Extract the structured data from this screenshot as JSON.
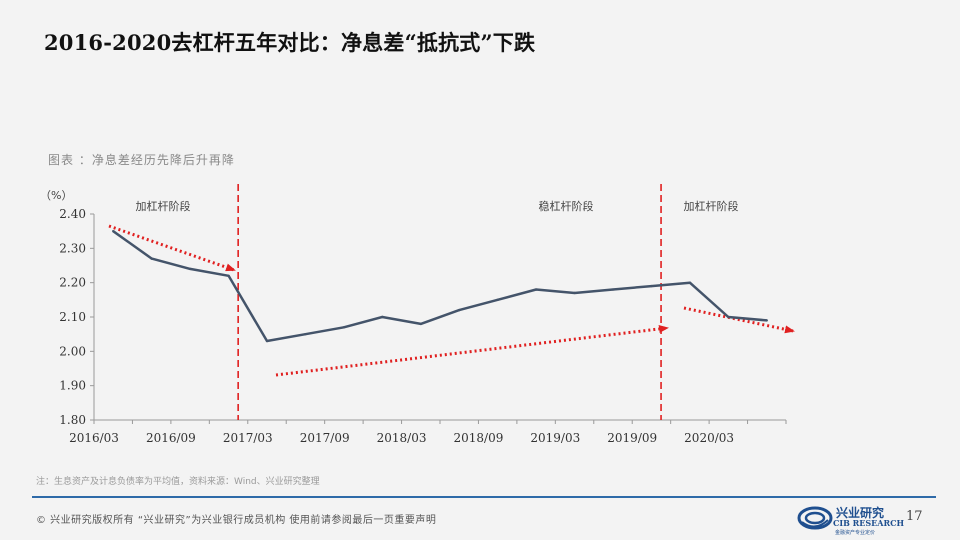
{
  "slide": {
    "title": "2016-2020去杠杆五年对比：净息差“抵抗式”下跌",
    "caption": "图表 ：净息差经历先降后升再降",
    "note": "注：生息资产及计息负债率为平均值，资料来源：Wind、兴业研究整理",
    "footer_left": "©  兴业研究版权所有   “兴业研究”为兴业银行成员机构   使用前请参阅最后一页重要声明",
    "page_number": "17"
  },
  "logo": {
    "name_cn": "兴业研究",
    "name_en": "CIB RESEARCH",
    "tagline": "金融资产专业定价",
    "icon": "cib-swirl-logo-icon"
  },
  "chart_data": {
    "type": "line",
    "title": "",
    "xlabel": "",
    "ylabel": "（%）",
    "ylim": [
      1.8,
      2.4
    ],
    "yticks": [
      "2.40",
      "2.30",
      "2.20",
      "2.10",
      "2.00",
      "1.90",
      "1.80"
    ],
    "xticks": [
      "2016/03",
      "2016/09",
      "2017/03",
      "2017/09",
      "2018/03",
      "2018/09",
      "2019/03",
      "2019/09",
      "2020/03"
    ],
    "x": [
      "2016/03",
      "2016/06",
      "2016/09",
      "2016/12",
      "2017/03",
      "2017/06",
      "2017/09",
      "2017/12",
      "2018/03",
      "2018/06",
      "2018/09",
      "2018/12",
      "2019/03",
      "2019/06",
      "2019/09",
      "2019/12",
      "2020/03",
      "2020/06"
    ],
    "series": [
      {
        "values": [
          2.35,
          2.27,
          2.24,
          2.22,
          2.03,
          2.05,
          2.07,
          2.1,
          2.08,
          2.12,
          2.15,
          2.18,
          2.17,
          2.18,
          2.19,
          2.2,
          2.1,
          2.09
        ],
        "color": "#44546a"
      }
    ],
    "phase_labels": [
      "加杠杆阶段",
      "稳杠杆阶段",
      "加杠杆阶段"
    ],
    "divider_color": "#e02020",
    "trend_arrow_color": "#e02020",
    "grid": false
  }
}
